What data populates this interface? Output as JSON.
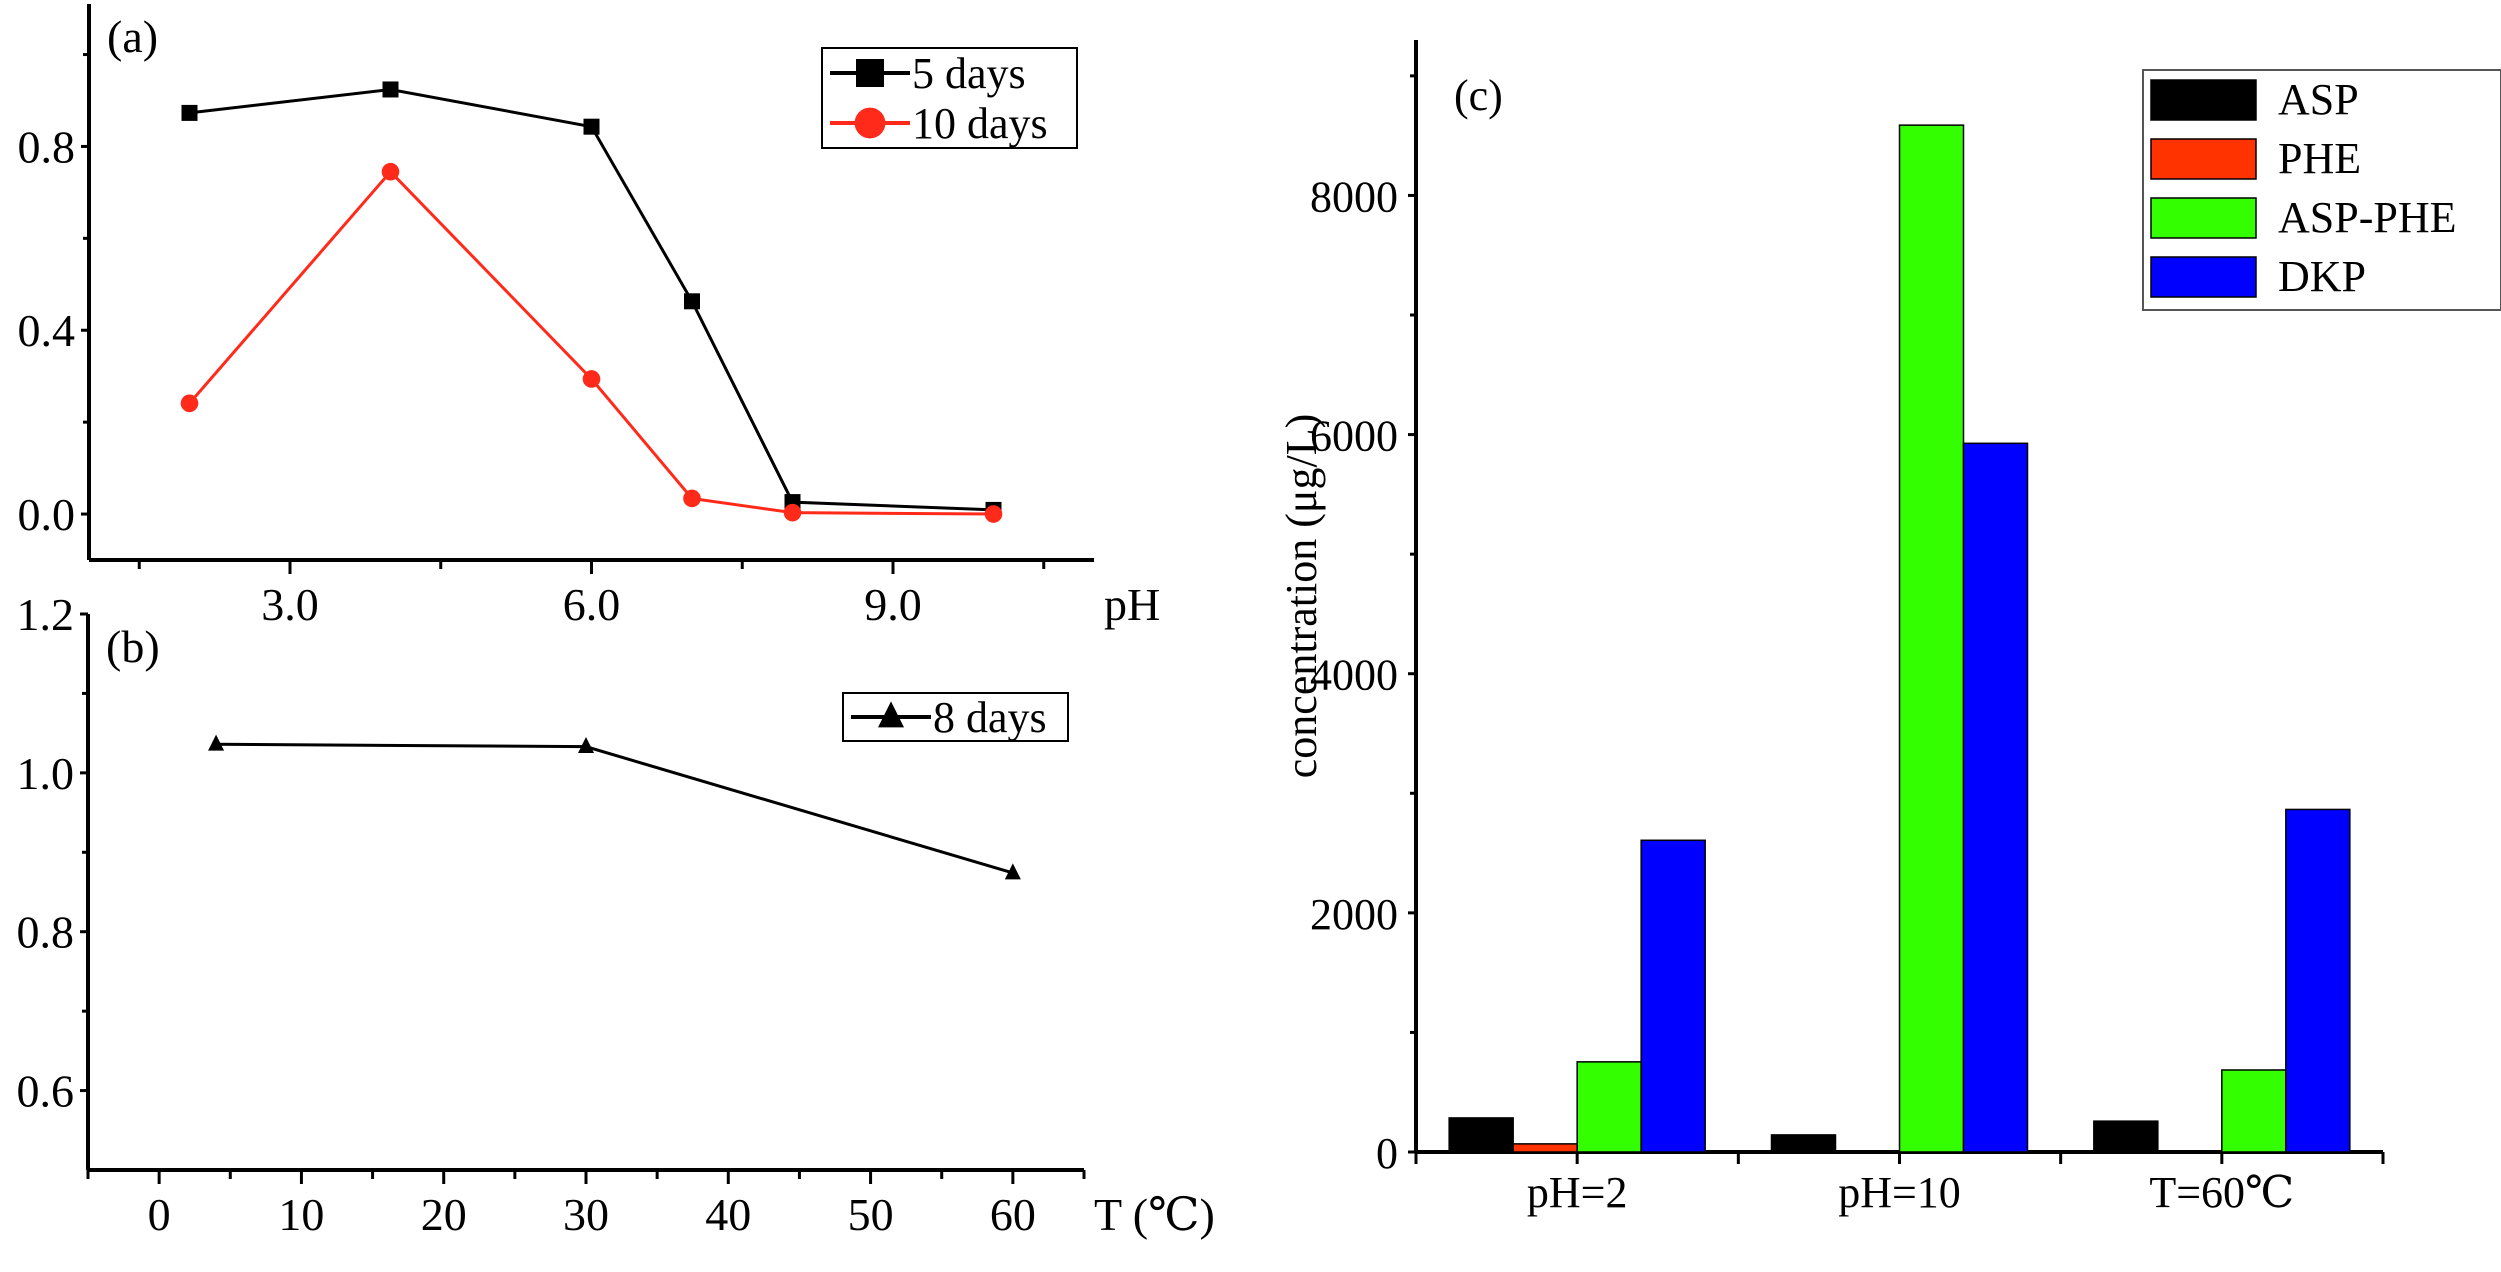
{
  "chart_data": [
    {
      "id": "a",
      "type": "line",
      "panel_label": "(a)",
      "xlabel": "pH",
      "ylabel": "",
      "xlim": [
        1.0,
        11.0
      ],
      "ylim": [
        -0.1,
        1.11
      ],
      "xticks": [
        3.0,
        6.0,
        9.0
      ],
      "xtick_labels": [
        "3.0",
        "6.0",
        "9.0"
      ],
      "xminor": [
        1.5,
        4.5,
        7.5,
        10.5
      ],
      "yticks": [
        0.0,
        0.4,
        0.8
      ],
      "ytick_labels": [
        "0.0",
        "0.4",
        "0.8"
      ],
      "yminor": [
        0.2,
        0.6,
        1.0
      ],
      "legend_position": "top-right",
      "series": [
        {
          "name": "5 days",
          "color": "#000000",
          "marker": "square",
          "x": [
            2,
            4,
            6,
            7,
            8,
            10
          ],
          "y": [
            0.873,
            0.924,
            0.843,
            0.463,
            0.026,
            0.009
          ]
        },
        {
          "name": "10 days",
          "color": "#ff2a1a",
          "marker": "circle",
          "x": [
            2,
            4,
            6,
            7,
            8,
            10
          ],
          "y": [
            0.241,
            0.745,
            0.294,
            0.034,
            0.003,
            0.0
          ]
        }
      ]
    },
    {
      "id": "b",
      "type": "line",
      "panel_label": "(b)",
      "xlabel": "T (℃)",
      "ylabel": "",
      "xlim": [
        -5,
        65
      ],
      "ylim": [
        0.5,
        1.2
      ],
      "xticks": [
        0,
        10,
        20,
        30,
        40,
        50,
        60
      ],
      "xtick_labels": [
        "0",
        "10",
        "20",
        "30",
        "40",
        "50",
        "60"
      ],
      "xminor": [
        -5,
        5,
        15,
        25,
        35,
        45,
        55,
        65
      ],
      "yticks": [
        0.6,
        0.8,
        1.0,
        1.2
      ],
      "ytick_labels": [
        "0.6",
        "0.8",
        "1.0",
        "1.2"
      ],
      "yminor": [
        0.7,
        0.9,
        1.1
      ],
      "legend_position": "top-right",
      "series": [
        {
          "name": "8 days",
          "color": "#000000",
          "marker": "triangle",
          "x": [
            4,
            30,
            60
          ],
          "y": [
            1.036,
            1.033,
            0.874
          ]
        }
      ]
    },
    {
      "id": "c",
      "type": "bar",
      "panel_label": "(c)",
      "xlabel": "",
      "ylabel": "concentration (μg/L)",
      "ylim": [
        0,
        9300
      ],
      "yticks": [
        0,
        2000,
        4000,
        6000,
        8000
      ],
      "ytick_labels": [
        "0",
        "2000",
        "4000",
        "6000",
        "8000"
      ],
      "yminor": [
        1000,
        3000,
        5000,
        7000,
        9000
      ],
      "categories": [
        "pH=2",
        "pH=10",
        "T=60℃"
      ],
      "legend_position": "top-right",
      "series": [
        {
          "name": "ASP",
          "color": "#000000",
          "values": [
            285,
            143,
            258
          ]
        },
        {
          "name": "PHE",
          "color": "#ff3300",
          "values": [
            68,
            0,
            0
          ]
        },
        {
          "name": "ASP-PHE",
          "color": "#33ff00",
          "values": [
            754,
            8588,
            686
          ]
        },
        {
          "name": "DKP",
          "color": "#0000ff",
          "values": [
            2607,
            5927,
            2865
          ]
        }
      ]
    }
  ]
}
